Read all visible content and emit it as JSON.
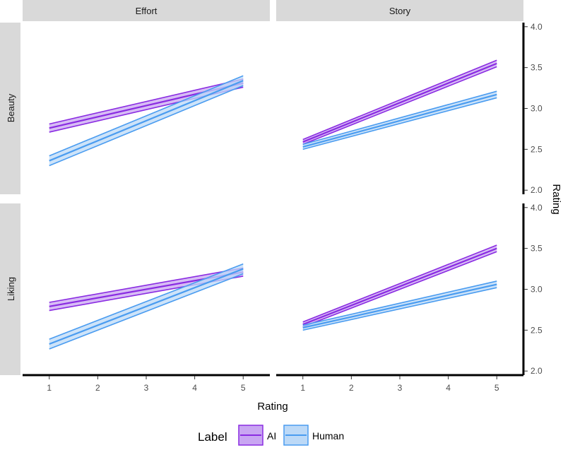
{
  "chart_data": {
    "type": "line",
    "title": "",
    "xlabel": "Rating",
    "ylabel": "Rating",
    "x_ticks": [
      1,
      2,
      3,
      4,
      5
    ],
    "y_ticks": [
      2.0,
      2.5,
      3.0,
      3.5,
      4.0
    ],
    "y_tick_labels": [
      "2.0",
      "2.5",
      "3.0",
      "3.5",
      "4.0"
    ],
    "xlim": [
      0.45,
      5.55
    ],
    "ylim": [
      1.95,
      4.05
    ],
    "columns": [
      "Effort",
      "Story"
    ],
    "rows": [
      "Beauty",
      "Liking"
    ],
    "legend": {
      "title": "Label",
      "position": "bottom",
      "entries": [
        {
          "name": "AI",
          "color": "#8a2be2",
          "fill": "#c9a6f2"
        },
        {
          "name": "Human",
          "color": "#4a9cf0",
          "fill": "#bcd9f7"
        }
      ]
    },
    "panels": [
      {
        "row": "Beauty",
        "col": "Effort",
        "series": [
          {
            "name": "AI",
            "x": [
              1,
              5
            ],
            "y": [
              2.76,
              3.31
            ],
            "ci_low": [
              2.71,
              3.26
            ],
            "ci_high": [
              2.81,
              3.36
            ]
          },
          {
            "name": "Human",
            "x": [
              1,
              5
            ],
            "y": [
              2.36,
              3.34
            ],
            "ci_low": [
              2.3,
              3.28
            ],
            "ci_high": [
              2.42,
              3.4
            ]
          }
        ]
      },
      {
        "row": "Beauty",
        "col": "Story",
        "series": [
          {
            "name": "AI",
            "x": [
              1,
              5
            ],
            "y": [
              2.59,
              3.55
            ],
            "ci_low": [
              2.56,
              3.51
            ],
            "ci_high": [
              2.62,
              3.59
            ]
          },
          {
            "name": "Human",
            "x": [
              1,
              5
            ],
            "y": [
              2.53,
              3.17
            ],
            "ci_low": [
              2.5,
              3.13
            ],
            "ci_high": [
              2.56,
              3.21
            ]
          }
        ]
      },
      {
        "row": "Liking",
        "col": "Effort",
        "series": [
          {
            "name": "AI",
            "x": [
              1,
              5
            ],
            "y": [
              2.79,
              3.21
            ],
            "ci_low": [
              2.74,
              3.16
            ],
            "ci_high": [
              2.84,
              3.26
            ]
          },
          {
            "name": "Human",
            "x": [
              1,
              5
            ],
            "y": [
              2.33,
              3.25
            ],
            "ci_low": [
              2.27,
              3.19
            ],
            "ci_high": [
              2.39,
              3.31
            ]
          }
        ]
      },
      {
        "row": "Liking",
        "col": "Story",
        "series": [
          {
            "name": "AI",
            "x": [
              1,
              5
            ],
            "y": [
              2.57,
              3.5
            ],
            "ci_low": [
              2.54,
              3.46
            ],
            "ci_high": [
              2.6,
              3.54
            ]
          },
          {
            "name": "Human",
            "x": [
              1,
              5
            ],
            "y": [
              2.53,
              3.06
            ],
            "ci_low": [
              2.5,
              3.02
            ],
            "ci_high": [
              2.56,
              3.1
            ]
          }
        ]
      }
    ]
  }
}
